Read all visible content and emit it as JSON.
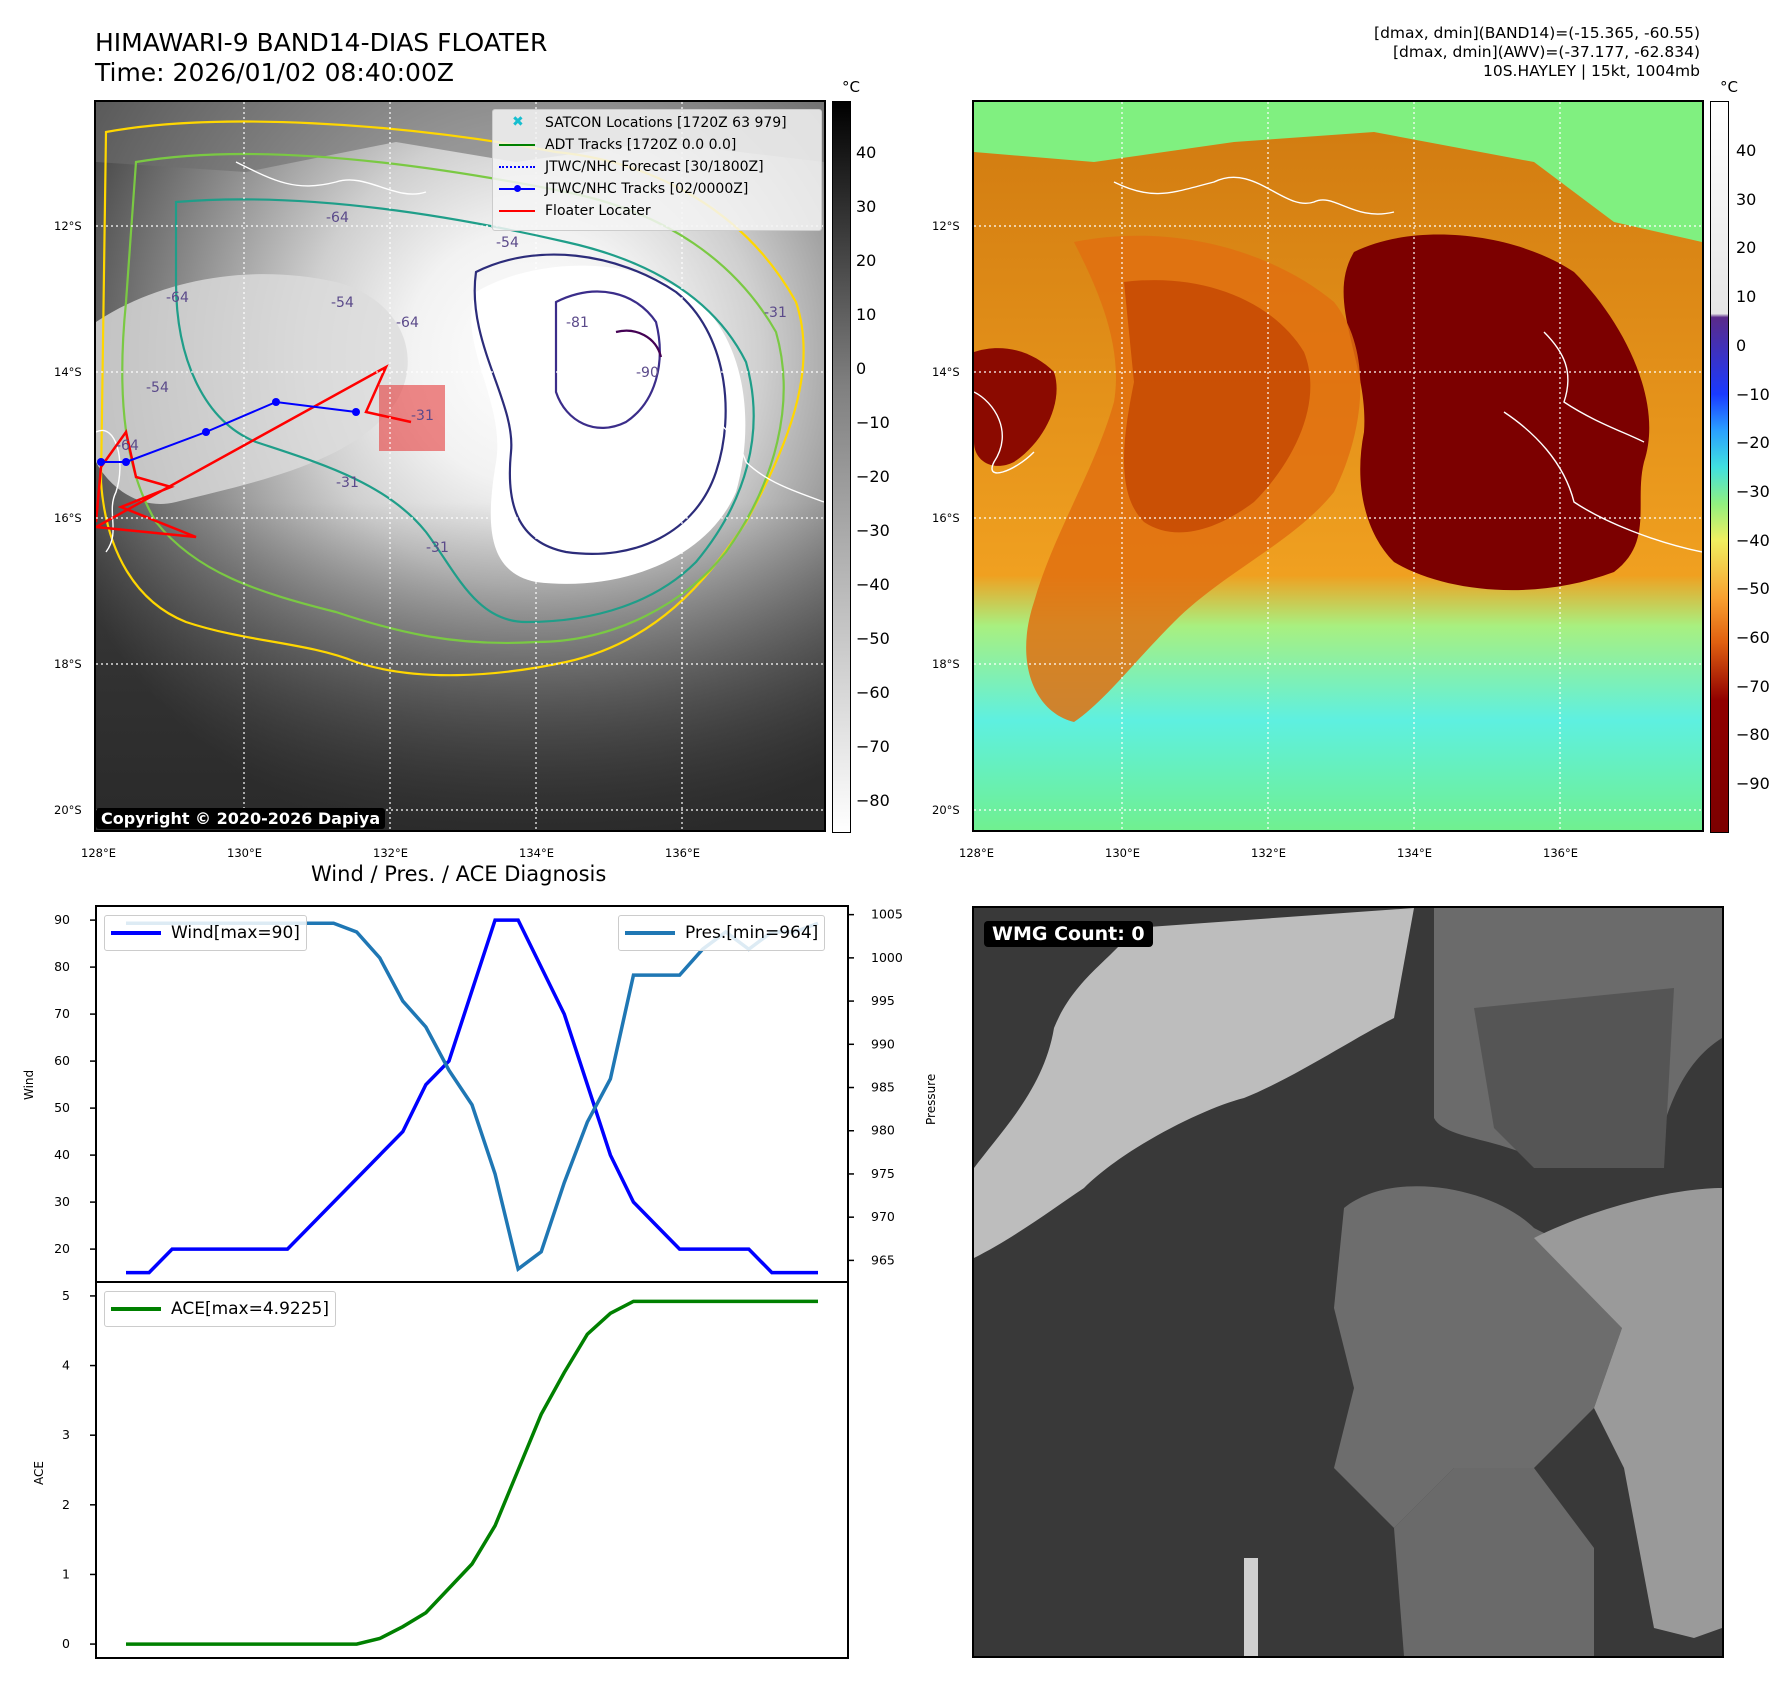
{
  "header": {
    "title_line1": "HIMAWARI-9 BAND14-DIAS FLOATER",
    "title_line2": "Time: 2026/01/02 08:40:00Z",
    "info_line1": "[dmax, dmin](BAND14)=(-15.365, -60.55)",
    "info_line2": "[dmax, dmin](AWV)=(-37.177, -62.834)",
    "info_line3": "10S.HAYLEY | 15kt, 1004mb"
  },
  "map": {
    "lat_labels": [
      "12°S",
      "14°S",
      "16°S",
      "18°S",
      "20°S"
    ],
    "lon_labels": [
      "128°E",
      "130°E",
      "132°E",
      "134°E",
      "136°E"
    ],
    "copyright": "Copyright © 2020-2026 Dapiya",
    "contour_labels": [
      "-64",
      "-64",
      "-54",
      "-64",
      "-54",
      "-81",
      "-90",
      "-64",
      "-31",
      "-31",
      "-54",
      "-31",
      "-31"
    ]
  },
  "legend": {
    "items": [
      {
        "label": "SATCON Locations [1720Z 63 979]",
        "color": "#17becf"
      },
      {
        "label": "ADT Tracks [1720Z 0.0 0.0]",
        "color": "#008000"
      },
      {
        "label": "JTWC/NHC Forecast [30/1800Z]",
        "color": "#0000ff"
      },
      {
        "label": "JTWC/NHC Tracks [02/0000Z]",
        "color": "#0000ff"
      },
      {
        "label": "Floater Locater",
        "color": "#ff0000"
      }
    ]
  },
  "colorbar_gray": {
    "unit": "°C",
    "ticks": [
      "40",
      "30",
      "20",
      "10",
      "0",
      "−10",
      "−20",
      "−30",
      "−40",
      "−50",
      "−60",
      "−70",
      "−80"
    ]
  },
  "colorbar_color": {
    "unit": "°C",
    "ticks": [
      "40",
      "30",
      "20",
      "10",
      "0",
      "−10",
      "−20",
      "−30",
      "−40",
      "−50",
      "−60",
      "−70",
      "−80",
      "−90"
    ]
  },
  "diagnosis": {
    "title": "Wind / Pres. / ACE Diagnosis",
    "wind_label": "Wind",
    "pressure_label": "Pressure",
    "ace_label": "ACE",
    "legend_wind": "Wind[max=90]",
    "legend_pres": "Pres.[min=964]",
    "legend_ace": "ACE[max=4.9225]",
    "wind_ticks": [
      "90",
      "80",
      "70",
      "60",
      "50",
      "40",
      "30",
      "20"
    ],
    "pres_ticks": [
      "1005",
      "1000",
      "995",
      "990",
      "985",
      "980",
      "975",
      "970",
      "965"
    ],
    "ace_ticks": [
      "5",
      "4",
      "3",
      "2",
      "1",
      "0"
    ]
  },
  "wmg": {
    "label": "WMG Count: 0"
  },
  "chart_data": [
    {
      "type": "line",
      "title": "Wind / Pres. / ACE Diagnosis",
      "x": [
        0,
        1,
        2,
        3,
        4,
        5,
        6,
        7,
        8,
        9,
        10,
        11,
        12,
        13,
        14,
        15,
        16,
        17,
        18,
        19,
        20,
        21,
        22,
        23,
        24,
        25,
        26,
        27,
        28,
        29,
        30
      ],
      "series": [
        {
          "name": "Wind[max=90]",
          "axis": "left",
          "color": "#0000ff",
          "values": [
            15,
            15,
            20,
            20,
            20,
            20,
            20,
            20,
            25,
            30,
            35,
            40,
            45,
            55,
            60,
            75,
            90,
            90,
            80,
            70,
            55,
            40,
            30,
            25,
            20,
            20,
            20,
            20,
            15,
            15,
            15
          ]
        },
        {
          "name": "Pres.[min=964]",
          "axis": "right",
          "color": "#1f77b4",
          "values": [
            1004,
            1004,
            1004,
            1004,
            1004,
            1004,
            1004,
            1004,
            1004,
            1004,
            1003,
            1000,
            995,
            992,
            987,
            983,
            975,
            964,
            966,
            974,
            981,
            986,
            998,
            998,
            998,
            1001,
            1003,
            1001,
            1003,
            1003,
            1004
          ]
        }
      ],
      "ylabel": "Wind",
      "ylim": [
        13,
        93
      ],
      "y2label": "Pressure",
      "y2lim": [
        962.5,
        1006
      ]
    },
    {
      "type": "line",
      "x": [
        0,
        1,
        2,
        3,
        4,
        5,
        6,
        7,
        8,
        9,
        10,
        11,
        12,
        13,
        14,
        15,
        16,
        17,
        18,
        19,
        20,
        21,
        22,
        23,
        24,
        25,
        26,
        27,
        28,
        29,
        30
      ],
      "series": [
        {
          "name": "ACE[max=4.9225]",
          "color": "#008000",
          "values": [
            0,
            0,
            0,
            0,
            0,
            0,
            0,
            0,
            0,
            0,
            0,
            0.08,
            0.25,
            0.45,
            0.8,
            1.15,
            1.7,
            2.5,
            3.3,
            3.9,
            4.45,
            4.75,
            4.9225,
            4.9225,
            4.9225,
            4.9225,
            4.9225,
            4.9225,
            4.9225,
            4.9225,
            4.9225
          ]
        }
      ],
      "ylabel": "ACE",
      "ylim": [
        -0.2,
        5.2
      ]
    }
  ]
}
